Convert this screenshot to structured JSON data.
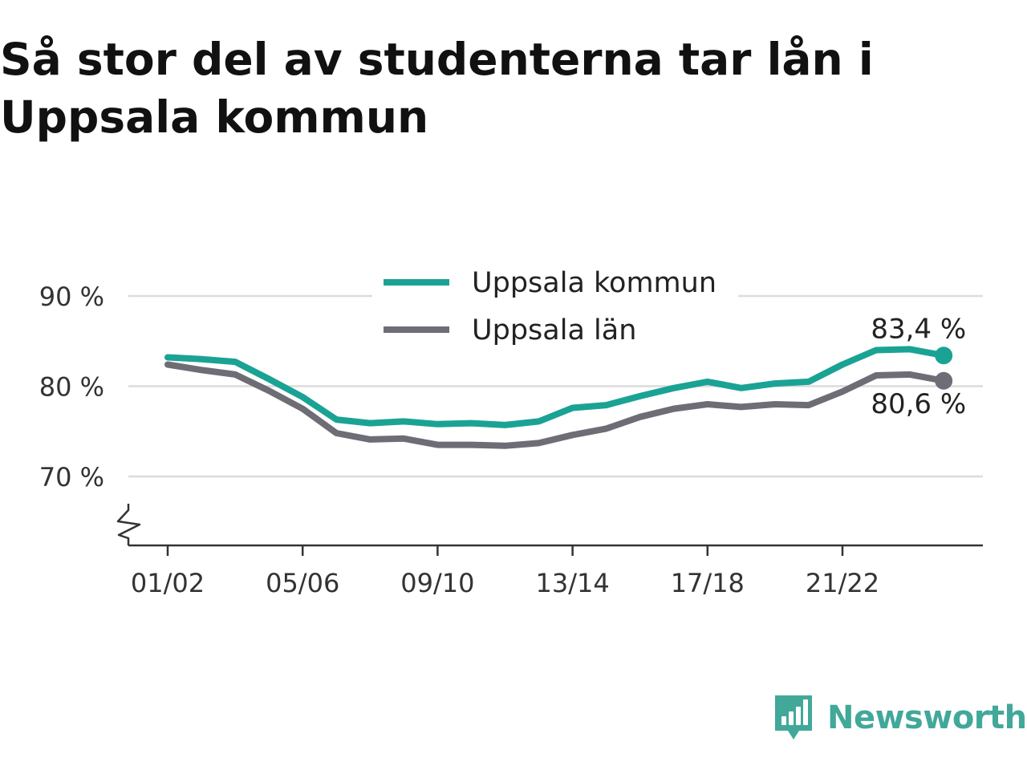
{
  "title": "Så stor del av studenterna tar lån i Uppsala kommun",
  "brand": {
    "name": "Newsworthy",
    "icon": "newsworthy-logo-icon"
  },
  "colors": {
    "kommun": "#1aa394",
    "lan": "#6e6d76",
    "grid": "#dcdcdc",
    "axis": "#333333",
    "brand": "#41a89a"
  },
  "chart_data": {
    "type": "line",
    "title": "Så stor del av studenterna tar lån i Uppsala kommun",
    "x": [
      "01/02",
      "02/03",
      "03/04",
      "04/05",
      "05/06",
      "06/07",
      "07/08",
      "08/09",
      "09/10",
      "10/11",
      "11/12",
      "12/13",
      "13/14",
      "14/15",
      "15/16",
      "16/17",
      "17/18",
      "18/19",
      "19/20",
      "20/21",
      "21/22",
      "22/23",
      "23/24",
      "24/25"
    ],
    "x_tick_labels": [
      "01/02",
      "05/06",
      "09/10",
      "13/14",
      "17/18",
      "21/22"
    ],
    "y_ticks": [
      70,
      80,
      90
    ],
    "y_tick_labels": [
      "70 %",
      "80 %",
      "90 %"
    ],
    "ylim": [
      62.4,
      92.4
    ],
    "axis_break": true,
    "grid": true,
    "legend": "top-center",
    "series": [
      {
        "name": "Uppsala kommun",
        "color": "#1aa394",
        "values": [
          83.2,
          83.0,
          82.7,
          80.8,
          78.8,
          76.3,
          75.9,
          76.1,
          75.8,
          75.9,
          75.7,
          76.1,
          77.6,
          77.9,
          78.9,
          79.8,
          80.5,
          79.8,
          80.3,
          80.5,
          82.4,
          84.0,
          84.1,
          83.4
        ],
        "end_label": "83,4 %"
      },
      {
        "name": "Uppsala län",
        "color": "#6e6d76",
        "values": [
          82.4,
          81.8,
          81.3,
          79.5,
          77.5,
          74.8,
          74.1,
          74.2,
          73.5,
          73.5,
          73.4,
          73.7,
          74.6,
          75.3,
          76.6,
          77.5,
          78.0,
          77.7,
          78.0,
          77.9,
          79.4,
          81.2,
          81.3,
          80.6
        ],
        "end_label": "80,6 %"
      }
    ]
  }
}
